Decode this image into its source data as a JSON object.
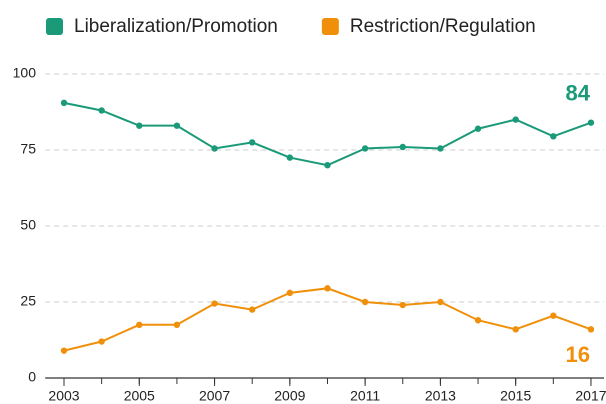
{
  "chart_data": {
    "type": "line",
    "x": [
      2003,
      2004,
      2005,
      2006,
      2007,
      2008,
      2009,
      2010,
      2011,
      2012,
      2013,
      2014,
      2015,
      2016,
      2017
    ],
    "series": [
      {
        "name": "Liberalization/Promotion",
        "color": "#1a9a78",
        "values": [
          90.5,
          88,
          83,
          83,
          75.5,
          77.5,
          72.5,
          70,
          75.5,
          76,
          75.5,
          82,
          85,
          79.5,
          84
        ]
      },
      {
        "name": "Restriction/Regulation",
        "color": "#f0900a",
        "values": [
          9,
          12,
          17.5,
          17.5,
          24.5,
          22.5,
          28,
          29.5,
          25,
          24,
          25,
          19,
          16,
          20.5,
          16
        ]
      }
    ],
    "xlim": [
      2002.5,
      2017.5
    ],
    "xticks": [
      2003,
      2005,
      2007,
      2009,
      2011,
      2013,
      2015,
      2017
    ],
    "ylim": [
      0,
      100
    ],
    "yticks": [
      0,
      25,
      50,
      75,
      100
    ],
    "grid": true,
    "legend": "top"
  }
}
